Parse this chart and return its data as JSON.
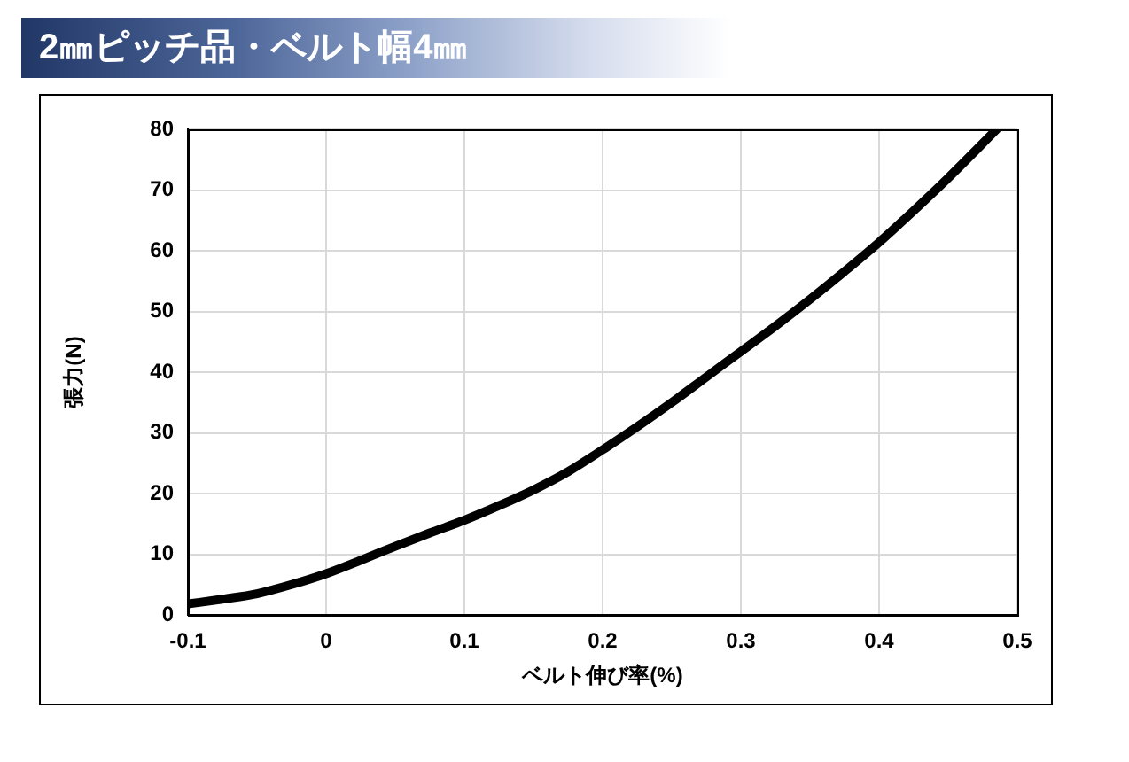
{
  "chart_data": {
    "type": "line",
    "title": "2㎜ピッチ品・ベルト幅4㎜",
    "xlabel": "ベルト伸び率(%)",
    "ylabel": "張力(N)",
    "x": [
      -0.1,
      -0.075,
      -0.05,
      -0.025,
      0,
      0.025,
      0.05,
      0.075,
      0.1,
      0.125,
      0.15,
      0.175,
      0.2,
      0.225,
      0.25,
      0.275,
      0.3,
      0.325,
      0.35,
      0.375,
      0.4,
      0.425,
      0.45,
      0.485
    ],
    "series": [
      {
        "color": "#000000",
        "values": [
          1.8,
          2.6,
          3.5,
          5,
          6.8,
          9,
          11.3,
          13.5,
          15.6,
          18,
          20.6,
          23.6,
          27.2,
          31,
          35,
          39.2,
          43.4,
          47.6,
          52,
          56.6,
          61.4,
          66.6,
          72,
          80
        ]
      }
    ],
    "xlim": [
      -0.1,
      0.5
    ],
    "xticks": [
      -0.1,
      0,
      0.1,
      0.2,
      0.3,
      0.4,
      0.5
    ],
    "ylim": [
      0,
      80
    ],
    "yticks": [
      0,
      10,
      20,
      30,
      40,
      50,
      60,
      70,
      80
    ],
    "grid": true,
    "marker": "none",
    "line_style": "solid"
  }
}
